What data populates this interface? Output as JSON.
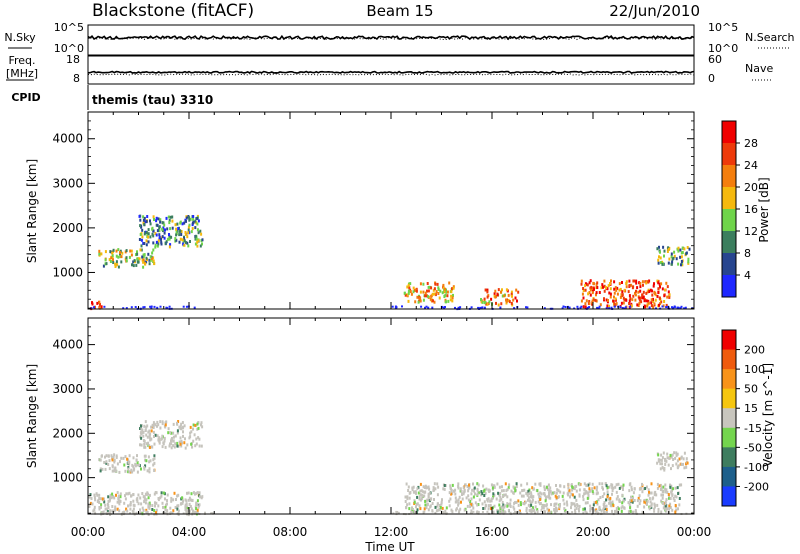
{
  "header": {
    "station": "Blackstone (fitACF)",
    "beam": "Beam 15",
    "date": "22/Jun/2010"
  },
  "status_panels": {
    "nsky_label": "N.Sky",
    "nsky_ticks": [
      "10^5",
      "10^0"
    ],
    "nsearch_label": "N.Search",
    "nsearch_ticks": [
      "10^5",
      "10^0"
    ],
    "freq_label_top": "Freq.",
    "freq_label_unit": "[MHz]",
    "freq_ticks": [
      "18",
      "8"
    ],
    "nave_label": "Nave",
    "nave_ticks": [
      "60",
      "0"
    ],
    "cpid_label": "CPID",
    "cpid_value": "themis (tau) 3310"
  },
  "colors": {
    "power_scale": [
      "#1f28ff",
      "#27458f",
      "#3b7e5e",
      "#6fd44a",
      "#f5b90e",
      "#f47e0d",
      "#ee3a0a",
      "#f00000"
    ],
    "velocity_scale": [
      "#1a3cff",
      "#1d5f8b",
      "#3e7d5f",
      "#74d54e",
      "#c8c6be",
      "#f5c60f",
      "#f8931a",
      "#ef5b0d",
      "#f00000"
    ],
    "ground_scatter": "#c6c4bd"
  },
  "chart_data": [
    {
      "type": "heatmap",
      "name": "power",
      "xlabel": "",
      "ylabel": "Slant Range [km]",
      "x_ticks": [
        "00:00",
        "04:00",
        "08:00",
        "12:00",
        "16:00",
        "20:00",
        "00:00"
      ],
      "xlim_hours": [
        0,
        24
      ],
      "ylim": [
        180,
        4600
      ],
      "y_ticks": [
        1000,
        2000,
        3000,
        4000
      ],
      "colorbar_label": "Power [dB]",
      "colorbar_ticks": [
        "4",
        "8",
        "12",
        "16",
        "20",
        "24",
        "28"
      ],
      "colorbar_range": [
        0,
        32
      ],
      "scatter_regions": [
        {
          "t_start": 0.0,
          "t_end": 0.5,
          "r_start": 200,
          "r_end": 400,
          "power": 28
        },
        {
          "t_start": 0.4,
          "t_end": 2.6,
          "r_start": 1150,
          "r_end": 1550,
          "power": 14
        },
        {
          "t_start": 2.0,
          "t_end": 4.5,
          "r_start": 1600,
          "r_end": 2300,
          "power": 10
        },
        {
          "t_start": 12.5,
          "t_end": 14.5,
          "r_start": 350,
          "r_end": 800,
          "power": 20
        },
        {
          "t_start": 15.5,
          "t_end": 17.0,
          "r_start": 300,
          "r_end": 650,
          "power": 22
        },
        {
          "t_start": 19.5,
          "t_end": 23.0,
          "r_start": 250,
          "r_end": 850,
          "power": 26
        },
        {
          "t_start": 22.5,
          "t_end": 23.8,
          "r_start": 1200,
          "r_end": 1600,
          "power": 12
        }
      ]
    },
    {
      "type": "heatmap",
      "name": "velocity",
      "xlabel": "Time UT",
      "ylabel": "Slant Range [km]",
      "x_ticks": [
        "00:00",
        "04:00",
        "08:00",
        "12:00",
        "16:00",
        "20:00",
        "00:00"
      ],
      "xlim_hours": [
        0,
        24
      ],
      "ylim": [
        180,
        4600
      ],
      "y_ticks": [
        1000,
        2000,
        3000,
        4000
      ],
      "colorbar_label": "Velocity [m s^-1]",
      "colorbar_ticks": [
        "200",
        "100",
        "50",
        "15",
        "-15",
        "-50",
        "-100",
        "-200"
      ],
      "colorbar_range": [
        -250,
        250
      ],
      "scatter_regions": [
        {
          "t_start": 0.0,
          "t_end": 4.5,
          "r_start": 200,
          "r_end": 700,
          "velocity": 0
        },
        {
          "t_start": 0.4,
          "t_end": 2.6,
          "r_start": 1150,
          "r_end": 1550,
          "velocity": 0
        },
        {
          "t_start": 2.0,
          "t_end": 4.5,
          "r_start": 1700,
          "r_end": 2300,
          "velocity": 0
        },
        {
          "t_start": 12.5,
          "t_end": 23.5,
          "r_start": 250,
          "r_end": 900,
          "velocity": 0
        },
        {
          "t_start": 22.5,
          "t_end": 23.8,
          "r_start": 1200,
          "r_end": 1600,
          "velocity": 10
        }
      ]
    }
  ]
}
